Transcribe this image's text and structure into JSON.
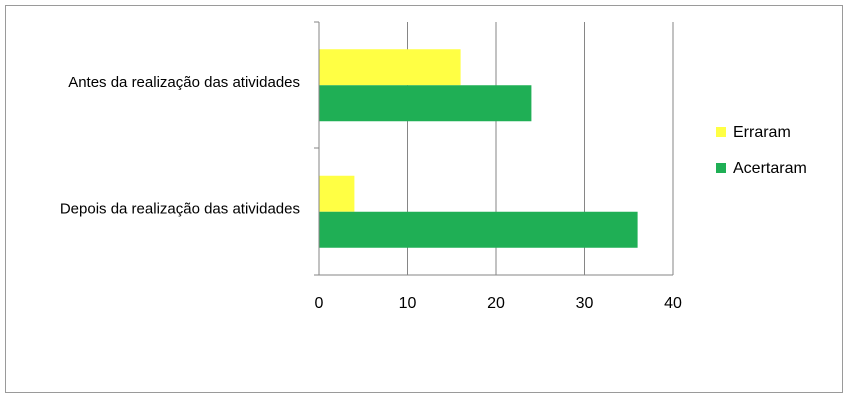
{
  "chart_data": {
    "type": "bar",
    "orientation": "horizontal",
    "categories": [
      "Antes da realização das atividades",
      "Depois da realização das atividades"
    ],
    "series": [
      {
        "name": "Erraram",
        "values": [
          16,
          4
        ],
        "color": "#ffff44"
      },
      {
        "name": "Acertaram",
        "values": [
          24,
          36
        ],
        "color": "#1faf55"
      }
    ],
    "xlim": [
      0,
      40
    ],
    "xticks": [
      "0",
      "10",
      "20",
      "30",
      "40"
    ],
    "grid": true,
    "legend": "right"
  }
}
